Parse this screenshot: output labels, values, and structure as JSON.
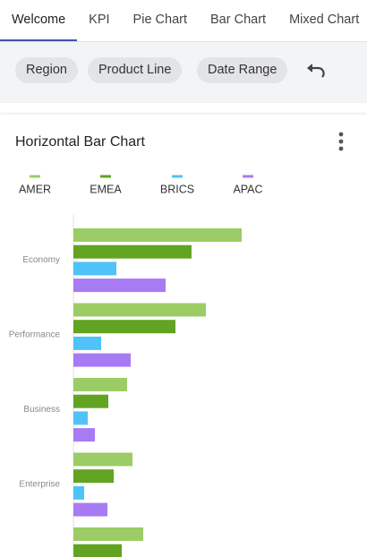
{
  "tabs": [
    "Welcome",
    "KPI",
    "Pie Chart",
    "Bar Chart",
    "Mixed Chart"
  ],
  "filters": [
    "Region",
    "Product Line",
    "Date Range"
  ],
  "chart_data": {
    "type": "hbar",
    "title": "Horizontal Bar Chart",
    "categories": [
      "Economy",
      "Performance",
      "Business",
      "Enterprise",
      null
    ],
    "series": [
      {
        "name": "AMER",
        "color": "#9ccc65",
        "values": [
          188,
          148,
          60,
          66,
          78
        ]
      },
      {
        "name": "EMEA",
        "color": "#62a422",
        "values": [
          132,
          114,
          39,
          45,
          54
        ]
      },
      {
        "name": "BRICS",
        "color": "#4fc3f7",
        "values": [
          48,
          31,
          16,
          12,
          null
        ]
      },
      {
        "name": "APAC",
        "color": "#a77bf3",
        "values": [
          103,
          64,
          24,
          38,
          null
        ]
      }
    ]
  }
}
